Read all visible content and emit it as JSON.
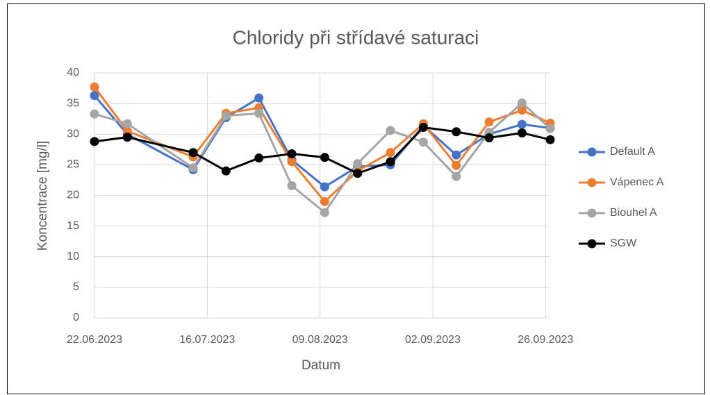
{
  "chart_data": {
    "type": "line",
    "title": "Chloridy při střídavé saturaci",
    "x_label": "Datum",
    "y_label": "Koncentrace [mg/l]",
    "x": [
      "22.06.2023",
      "29.06.2023",
      "13.07.2023",
      "20.07.2023",
      "27.07.2023",
      "03.08.2023",
      "10.08.2023",
      "17.08.2023",
      "24.08.2023",
      "31.08.2023",
      "07.09.2023",
      "14.09.2023",
      "21.09.2023",
      "27.09.2023"
    ],
    "series": [
      {
        "name": "Default A",
        "color": "#4472c4",
        "values": [
          36.3,
          30.0,
          24.2,
          32.7,
          35.9,
          25.8,
          21.4,
          24.7,
          25.0,
          31.4,
          26.6,
          30.0,
          31.6,
          31.0
        ]
      },
      {
        "name": "Vápenec A",
        "color": "#ed7d31",
        "values": [
          37.7,
          30.5,
          26.3,
          33.4,
          34.3,
          25.5,
          19.0,
          24.0,
          27.0,
          31.7,
          24.9,
          32.0,
          33.9,
          31.8
        ]
      },
      {
        "name": "Biouhel A",
        "color": "#a5a5a5",
        "values": [
          33.3,
          31.7,
          24.5,
          33.0,
          33.4,
          21.6,
          17.2,
          25.2,
          30.6,
          28.7,
          23.1,
          30.3,
          35.1,
          30.9
        ]
      },
      {
        "name": "SGW",
        "color": "#000000",
        "values": [
          28.8,
          29.5,
          27.0,
          24.0,
          26.1,
          26.8,
          26.2,
          23.6,
          25.5,
          31.1,
          30.4,
          29.4,
          30.2,
          29.1
        ]
      }
    ],
    "xlim": [
      "22.06.2023",
      "27.09.2023"
    ],
    "xticks": [
      "22.06.2023",
      "16.07.2023",
      "09.08.2023",
      "02.09.2023",
      "26.09.2023"
    ],
    "ylim": [
      0,
      40
    ],
    "yticks": [
      0,
      5,
      10,
      15,
      20,
      25,
      30,
      35,
      40
    ],
    "grid": true,
    "legend": "right"
  }
}
